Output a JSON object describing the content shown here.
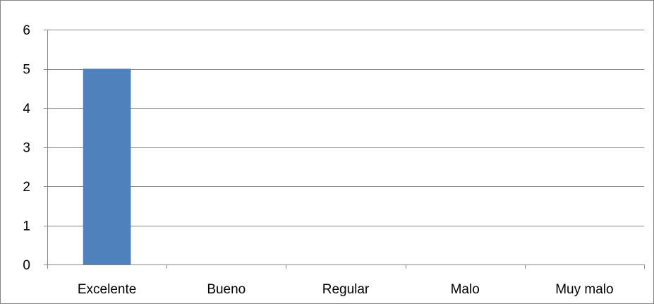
{
  "chart_data": {
    "type": "bar",
    "categories": [
      "Excelente",
      "Bueno",
      "Regular",
      "Malo",
      "Muy malo"
    ],
    "values": [
      5,
      0,
      0,
      0,
      0
    ],
    "title": "",
    "xlabel": "",
    "ylabel": "",
    "ylim": [
      0,
      6
    ],
    "yticks": [
      "0",
      "1",
      "2",
      "3",
      "4",
      "5",
      "6"
    ],
    "grid": true,
    "legend": "none",
    "bar_color": "#4F81BD",
    "gridline_color": "#868686"
  }
}
